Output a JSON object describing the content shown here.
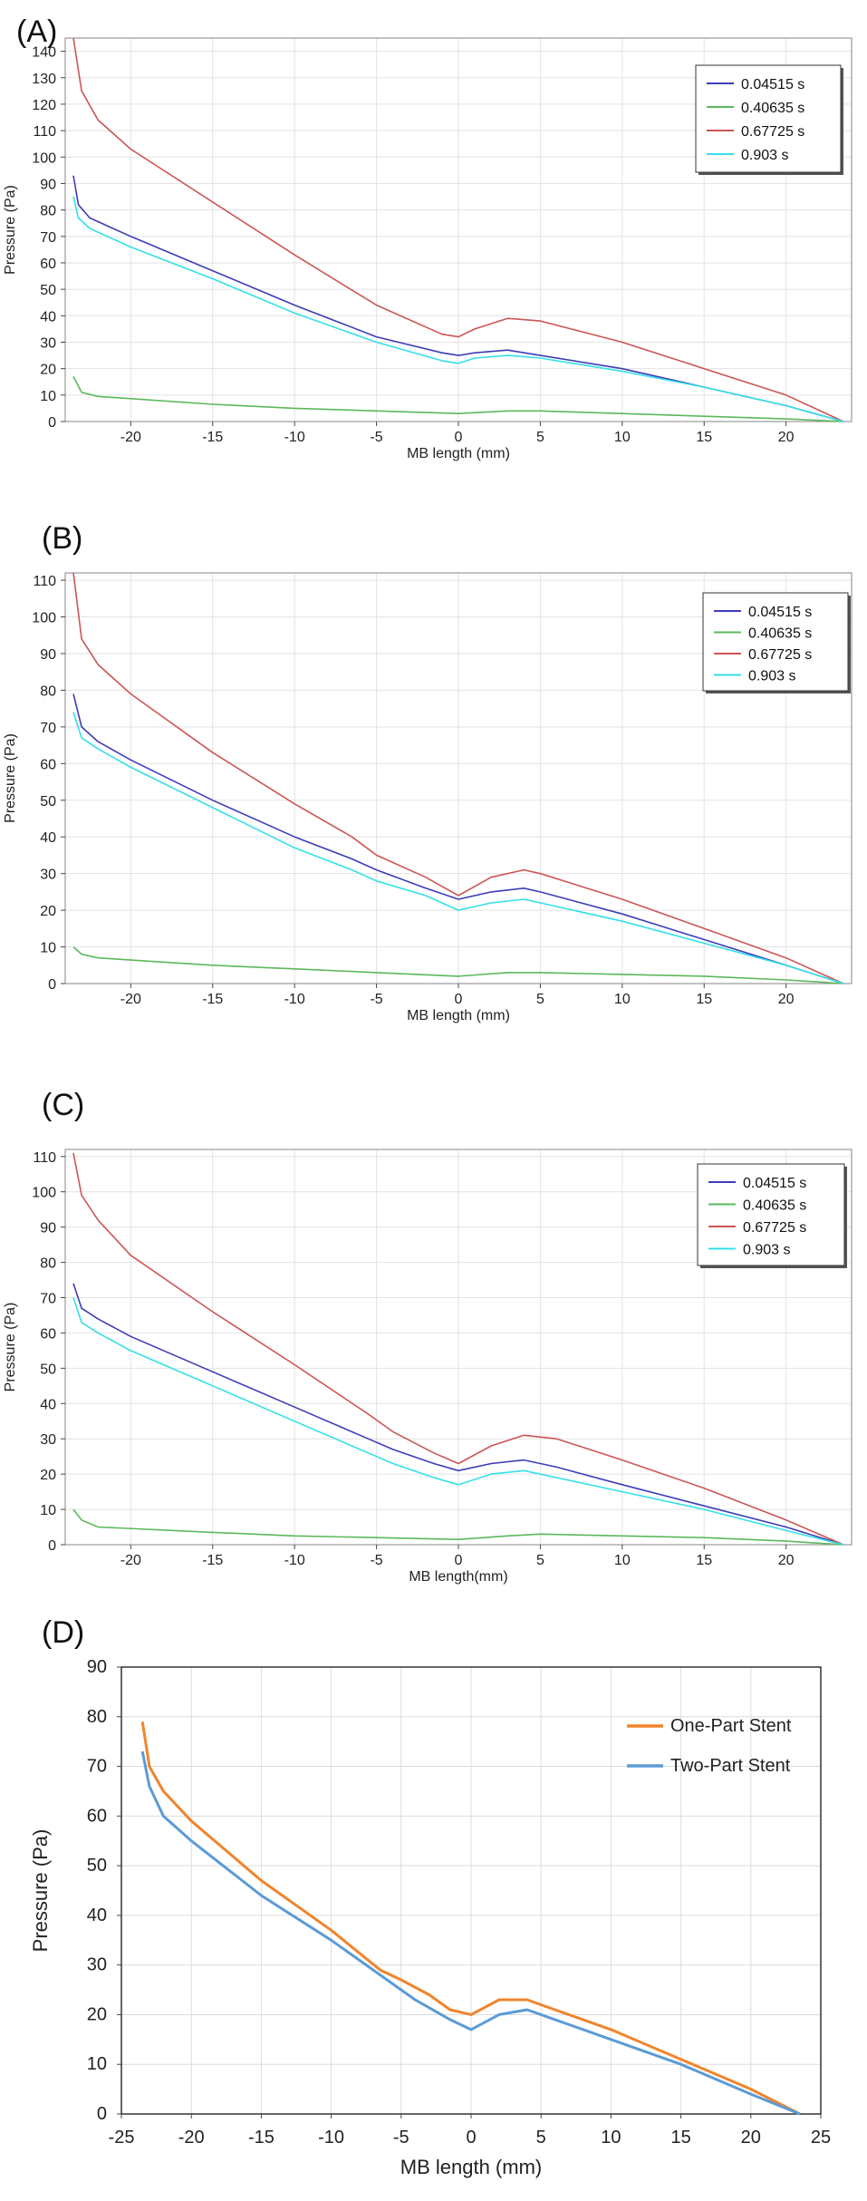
{
  "chart_data": [
    {
      "panel": "(A)",
      "type": "line",
      "xlabel": "MB length (mm)",
      "ylabel": "Pressure (Pa)",
      "xlim": [
        -24,
        24
      ],
      "ylim": [
        0,
        145
      ],
      "xticks": [
        -20,
        -15,
        -10,
        -5,
        0,
        5,
        10,
        15,
        20
      ],
      "yticks": [
        0,
        10,
        20,
        30,
        40,
        50,
        60,
        70,
        80,
        90,
        100,
        110,
        120,
        130,
        140
      ],
      "grid": true,
      "legend_position": "top-right",
      "series": [
        {
          "name": "0.04515 s",
          "color": "#3d3db8",
          "x": [
            -23.5,
            -23.2,
            -22.5,
            -20,
            -15,
            -10,
            -5,
            -1,
            0,
            1,
            3,
            5,
            10,
            15,
            20,
            23.5
          ],
          "y": [
            93,
            82,
            77,
            70,
            57,
            44,
            32,
            26,
            25,
            26,
            27,
            25,
            20,
            13,
            6,
            0
          ]
        },
        {
          "name": "0.40635 s",
          "color": "#5cb85c",
          "x": [
            -23.5,
            -23,
            -22,
            -15,
            -10,
            -5,
            0,
            3,
            5,
            10,
            15,
            20,
            23.5
          ],
          "y": [
            17,
            11,
            9.5,
            6.5,
            5,
            4,
            3,
            4,
            4,
            3,
            2,
            1,
            0
          ]
        },
        {
          "name": "0.67725 s",
          "color": "#cc5555",
          "x": [
            -23.5,
            -23,
            -22,
            -20,
            -15,
            -10,
            -5,
            -1,
            0,
            1,
            3,
            5,
            10,
            15,
            20,
            23.5
          ],
          "y": [
            145,
            125,
            114,
            103,
            83,
            63,
            44,
            33,
            32,
            35,
            39,
            38,
            30,
            20,
            10,
            0
          ]
        },
        {
          "name": "0.903 s",
          "color": "#33e0e8",
          "x": [
            -23.5,
            -23.2,
            -22.5,
            -20,
            -15,
            -10,
            -5,
            -1,
            0,
            1,
            3,
            5,
            10,
            15,
            20,
            23.5
          ],
          "y": [
            85,
            77,
            73,
            66,
            54,
            41,
            30,
            23,
            22,
            24,
            25,
            24,
            19,
            13,
            6,
            0
          ]
        }
      ]
    },
    {
      "panel": "(B)",
      "type": "line",
      "xlabel": "MB length (mm)",
      "ylabel": "Pressure (Pa)",
      "xlim": [
        -24,
        24
      ],
      "ylim": [
        0,
        112
      ],
      "xticks": [
        -20,
        -15,
        -10,
        -5,
        0,
        5,
        10,
        15,
        20
      ],
      "yticks": [
        0,
        10,
        20,
        30,
        40,
        50,
        60,
        70,
        80,
        90,
        100,
        110
      ],
      "grid": true,
      "legend_position": "top-right",
      "series": [
        {
          "name": "0.04515 s",
          "color": "#3d3db8",
          "x": [
            -23.5,
            -23,
            -22,
            -20,
            -15,
            -10,
            -6.5,
            -5,
            -2,
            0,
            2,
            4,
            5,
            10,
            15,
            20,
            23.5
          ],
          "y": [
            79,
            70,
            66,
            61,
            50,
            40,
            34,
            31,
            26,
            23,
            25,
            26,
            25,
            19,
            12,
            5,
            0
          ]
        },
        {
          "name": "0.40635 s",
          "color": "#5cb85c",
          "x": [
            -23.5,
            -23,
            -22,
            -15,
            -10,
            -5,
            0,
            3,
            5,
            10,
            15,
            20,
            23.5
          ],
          "y": [
            10,
            8,
            7,
            5,
            4,
            3,
            2,
            3,
            3,
            2.5,
            2,
            1,
            0
          ]
        },
        {
          "name": "0.67725 s",
          "color": "#cc5555",
          "x": [
            -23.5,
            -23,
            -22,
            -20,
            -15,
            -10,
            -6.5,
            -5,
            -2,
            0,
            2,
            4,
            5,
            10,
            15,
            20,
            23.5
          ],
          "y": [
            112,
            94,
            87,
            79,
            63,
            49,
            40,
            35,
            29,
            24,
            29,
            31,
            30,
            23,
            15,
            7,
            0
          ]
        },
        {
          "name": "0.903 s",
          "color": "#33e0e8",
          "x": [
            -23.5,
            -23,
            -22,
            -20,
            -15,
            -10,
            -6.5,
            -5,
            -2,
            0,
            2,
            4,
            5,
            10,
            15,
            20,
            23.5
          ],
          "y": [
            74,
            67,
            64,
            59,
            48,
            37,
            31,
            28,
            24,
            20,
            22,
            23,
            22,
            17,
            11,
            5,
            0
          ]
        }
      ]
    },
    {
      "panel": "(C)",
      "type": "line",
      "xlabel": "MB length(mm)",
      "ylabel": "Pressure (Pa)",
      "xlim": [
        -24,
        24
      ],
      "ylim": [
        0,
        112
      ],
      "xticks": [
        -20,
        -15,
        -10,
        -5,
        0,
        5,
        10,
        15,
        20
      ],
      "yticks": [
        0,
        10,
        20,
        30,
        40,
        50,
        60,
        70,
        80,
        90,
        100,
        110
      ],
      "grid": true,
      "legend_position": "top-right",
      "series": [
        {
          "name": "0.04515 s",
          "color": "#3d3db8",
          "x": [
            -23.5,
            -23,
            -22,
            -20,
            -15,
            -10,
            -5.5,
            -4,
            -1.5,
            0,
            2,
            4,
            6,
            10,
            15,
            20,
            23.5
          ],
          "y": [
            74,
            67,
            64,
            59,
            49,
            39,
            30,
            27,
            23,
            21,
            23,
            24,
            22,
            17,
            11,
            5,
            0
          ]
        },
        {
          "name": "0.40635 s",
          "color": "#5cb85c",
          "x": [
            -23.5,
            -23,
            -22,
            -15,
            -10,
            -5,
            0,
            3,
            5,
            10,
            15,
            20,
            23.5
          ],
          "y": [
            10,
            7,
            5,
            3.5,
            2.5,
            2,
            1.5,
            2.5,
            3,
            2.5,
            2,
            1,
            0
          ]
        },
        {
          "name": "0.67725 s",
          "color": "#cc5555",
          "x": [
            -23.5,
            -23,
            -22,
            -20,
            -15,
            -10,
            -5.5,
            -4,
            -1.5,
            0,
            2,
            4,
            6,
            10,
            15,
            20,
            23.5
          ],
          "y": [
            111,
            99,
            92,
            82,
            66,
            51,
            37,
            32,
            26,
            23,
            28,
            31,
            30,
            24,
            16,
            7,
            0
          ]
        },
        {
          "name": "0.903 s",
          "color": "#33e0e8",
          "x": [
            -23.5,
            -23,
            -22,
            -20,
            -15,
            -10,
            -5.5,
            -4,
            -1.5,
            0,
            2,
            4,
            6,
            10,
            15,
            20,
            23.5
          ],
          "y": [
            70,
            63,
            60,
            55,
            45,
            35,
            26,
            23,
            19,
            17,
            20,
            21,
            19,
            15,
            10,
            4,
            0
          ]
        }
      ]
    },
    {
      "panel": "(D)",
      "type": "line",
      "xlabel": "MB length (mm)",
      "ylabel": "Pressure (Pa)",
      "xlim": [
        -25,
        25
      ],
      "ylim": [
        0,
        90
      ],
      "xticks": [
        -25,
        -20,
        -15,
        -10,
        -5,
        0,
        5,
        10,
        15,
        20,
        25
      ],
      "yticks": [
        0,
        10,
        20,
        30,
        40,
        50,
        60,
        70,
        80,
        90
      ],
      "grid": true,
      "legend_position": "top-right",
      "series": [
        {
          "name": "One-Part Stent",
          "color": "#f0842c",
          "x": [
            -23.5,
            -23,
            -22,
            -20,
            -15,
            -10,
            -6.5,
            -5,
            -3,
            -1.5,
            0,
            2,
            4,
            6,
            10,
            15,
            20,
            23.5
          ],
          "y": [
            79,
            70,
            65,
            59,
            47,
            37,
            29,
            27,
            24,
            21,
            20,
            23,
            23,
            21,
            17,
            11,
            5,
            0
          ]
        },
        {
          "name": "Two-Part Stent",
          "color": "#5b9bd5",
          "x": [
            -23.5,
            -23,
            -22,
            -20,
            -15,
            -10,
            -5.5,
            -4,
            -1.5,
            0,
            2,
            4,
            6,
            10,
            15,
            20,
            23.5
          ],
          "y": [
            73,
            66,
            60,
            55,
            44,
            35,
            26,
            23,
            19,
            17,
            20,
            21,
            19,
            15,
            10,
            4,
            0
          ]
        }
      ]
    }
  ]
}
